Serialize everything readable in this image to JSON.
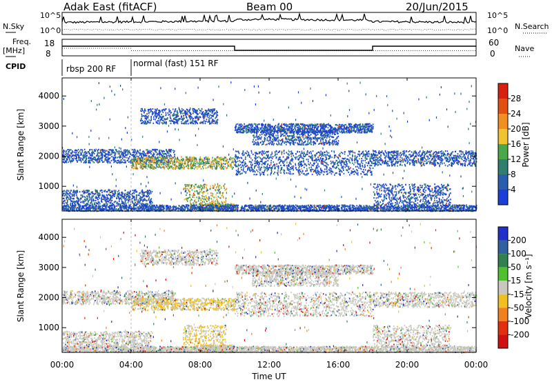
{
  "header": {
    "station": "Adak East (fitACF)",
    "beam": "Beam 00",
    "date": "20/Jun/2015"
  },
  "panels": {
    "nsky": {
      "left_label": "N.Sky",
      "right_label": "N.Search",
      "left_ticks": [
        "10^5",
        "10^0"
      ],
      "right_ticks": [
        "10^5",
        "10^0"
      ]
    },
    "freq": {
      "left_label_1": "Freq.",
      "left_label_2": "[MHz]",
      "right_label": "Nave",
      "left_ticks": [
        "18",
        "8"
      ],
      "right_ticks": [
        "60",
        "0"
      ]
    },
    "cpid": {
      "label": "CPID",
      "segments": [
        {
          "text": "rbsp 200 RF",
          "start_hour": 0,
          "end_hour": 4
        },
        {
          "text": "normal (fast) 151 RF",
          "start_hour": 4,
          "end_hour": 24
        }
      ]
    }
  },
  "chart_data": [
    {
      "type": "heatmap",
      "name": "power",
      "ylabel": "Slant Range [km]",
      "colorbar_label": "Power [dB]",
      "ylim": [
        180,
        4600
      ],
      "y_ticks": [
        1000,
        2000,
        3000,
        4000
      ],
      "colorbar_ticks": [
        "4",
        "8",
        "12",
        "16",
        "20",
        "24",
        "28"
      ],
      "colors": [
        "#1a3fd8",
        "#2a5cb0",
        "#2f7f6f",
        "#4aa84a",
        "#f0c430",
        "#f09020",
        "#e05010",
        "#d82010"
      ]
    },
    {
      "type": "heatmap",
      "name": "velocity",
      "ylabel": "Slant Range [km]",
      "colorbar_label": "Velocity [m s⁻¹]",
      "ylim": [
        180,
        4600
      ],
      "y_ticks": [
        1000,
        2000,
        3000,
        4000
      ],
      "colorbar_ticks": [
        "200",
        "100",
        "50",
        "15",
        "-15",
        "-50",
        "-100",
        "-200"
      ],
      "colors": [
        "#2030c8",
        "#3060a0",
        "#308050",
        "#50c030",
        "#c8c8c0",
        "#f0c020",
        "#f08020",
        "#e03010",
        "#d01010"
      ]
    }
  ],
  "x_axis": {
    "label": "Time UT",
    "ticks": [
      "00:00",
      "04:00",
      "08:00",
      "12:00",
      "16:00",
      "20:00",
      "00:00"
    ],
    "xlim_hours": [
      0,
      24
    ]
  }
}
